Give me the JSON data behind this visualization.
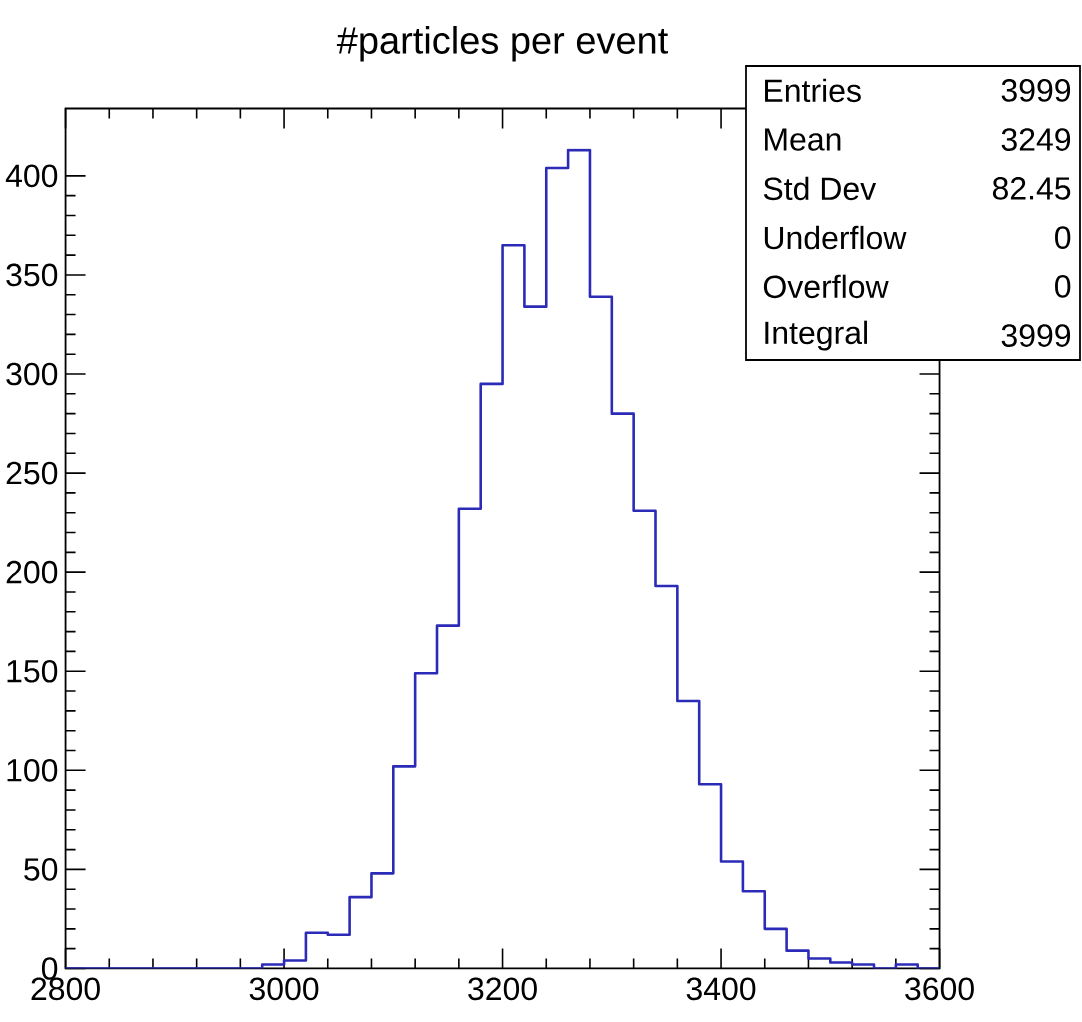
{
  "chart_data": {
    "type": "histogram",
    "title": "#particles per event",
    "bins": [
      2800,
      2820,
      2840,
      2860,
      2880,
      2900,
      2920,
      2940,
      2960,
      2980,
      3000,
      3020,
      3040,
      3060,
      3080,
      3100,
      3120,
      3140,
      3160,
      3180,
      3200,
      3220,
      3240,
      3260,
      3280,
      3300,
      3320,
      3340,
      3360,
      3380,
      3400,
      3420,
      3440,
      3460,
      3480,
      3500,
      3520,
      3540,
      3560,
      3580,
      3600
    ],
    "values": [
      0,
      0,
      0,
      0,
      0,
      0,
      0,
      0,
      0,
      2,
      4,
      18,
      17,
      36,
      48,
      102,
      149,
      173,
      232,
      295,
      365,
      334,
      404,
      413,
      339,
      280,
      231,
      193,
      135,
      93,
      54,
      39,
      20,
      9,
      5,
      3,
      2,
      0,
      2,
      0
    ],
    "color": "#2b2bb8",
    "xlim": [
      2800,
      3600
    ],
    "ylim": [
      0,
      434
    ],
    "xticks": [
      2800,
      3000,
      3200,
      3400,
      3600
    ],
    "yticks": [
      0,
      50,
      100,
      150,
      200,
      250,
      300,
      350,
      400
    ],
    "annotations": [
      "Entries",
      "3999",
      "Mean",
      "3249",
      "Std Dev",
      "82.45",
      "Underflow",
      "0",
      "Overflow",
      "0",
      "Integral",
      "3999"
    ]
  }
}
